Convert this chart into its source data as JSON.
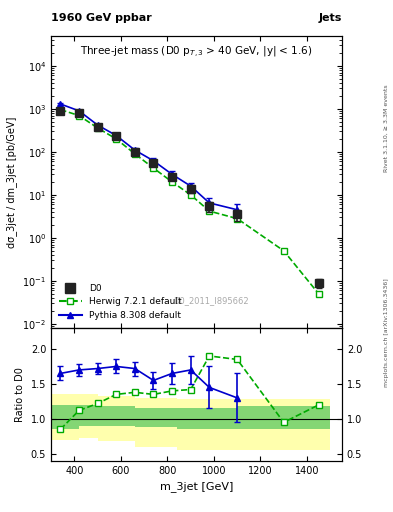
{
  "title_top": "1960 GeV ppbar",
  "title_top_right": "Jets",
  "plot_title": "Three-jet mass (D0 p_{T,3} > 40 GeV, |y| < 1.6)",
  "xlabel": "m_3jet [GeV]",
  "ylabel_main": "dσ_3jet / dm_3jet [pb/GeV]",
  "ylabel_ratio": "Ratio to D0",
  "watermark": "D0_2011_I895662",
  "right_label": "mcplots.cern.ch [arXiv:1306.3436]",
  "rivet_label": "Rivet 3.1.10, ≥ 3.3M events",
  "d0_x": [
    340,
    420,
    500,
    580,
    660,
    740,
    820,
    900,
    980,
    1100,
    1450
  ],
  "d0_y": [
    900,
    800,
    380,
    230,
    100,
    55,
    26,
    14,
    5.5,
    3.5,
    0.09
  ],
  "d0_yerr": [
    60,
    50,
    30,
    20,
    12,
    8,
    4,
    3,
    1.5,
    1.0,
    0.02
  ],
  "herwig_x": [
    340,
    420,
    500,
    580,
    660,
    740,
    820,
    900,
    980,
    1100,
    1300,
    1450
  ],
  "herwig_y": [
    960,
    700,
    360,
    200,
    90,
    42,
    20,
    10,
    4.2,
    2.8,
    0.5,
    0.05
  ],
  "pythia_x": [
    340,
    420,
    500,
    580,
    660,
    740,
    820,
    900,
    980,
    1100
  ],
  "pythia_y": [
    1300,
    900,
    420,
    240,
    110,
    62,
    30,
    16,
    6.5,
    4.5
  ],
  "pythia_yerr": [
    80,
    60,
    35,
    25,
    14,
    9,
    5,
    3,
    2.0,
    1.5
  ],
  "ratio_herwig_x": [
    340,
    420,
    500,
    580,
    660,
    740,
    820,
    900,
    980,
    1100,
    1300,
    1450
  ],
  "ratio_herwig_y": [
    0.85,
    1.12,
    1.22,
    1.35,
    1.38,
    1.35,
    1.4,
    1.42,
    1.9,
    1.85,
    0.95,
    1.2
  ],
  "ratio_pythia_x": [
    340,
    420,
    500,
    580,
    660,
    740,
    820,
    900,
    980,
    1100
  ],
  "ratio_pythia_y": [
    1.65,
    1.7,
    1.72,
    1.75,
    1.72,
    1.55,
    1.65,
    1.7,
    1.45,
    1.3
  ],
  "ratio_pythia_yerr": [
    0.1,
    0.08,
    0.08,
    0.1,
    0.1,
    0.12,
    0.15,
    0.2,
    0.3,
    0.35
  ],
  "band_x_edges": [
    300,
    420,
    500,
    660,
    840,
    1100,
    1500
  ],
  "band_green_lo": [
    0.85,
    0.9,
    0.9,
    0.88,
    0.85,
    0.85,
    0.85
  ],
  "band_green_hi": [
    1.2,
    1.2,
    1.18,
    1.15,
    1.15,
    1.18,
    1.18
  ],
  "band_yellow_lo": [
    0.7,
    0.72,
    0.68,
    0.6,
    0.55,
    0.55,
    0.55
  ],
  "band_yellow_hi": [
    1.35,
    1.35,
    1.32,
    1.3,
    1.28,
    1.28,
    1.28
  ],
  "xlim": [
    300,
    1550
  ],
  "ylim_main": [
    0.008,
    50000
  ],
  "ylim_ratio": [
    0.4,
    2.3
  ],
  "color_d0": "#222222",
  "color_herwig": "#00aa00",
  "color_pythia": "#0000cc",
  "color_band_green": "#66cc66",
  "color_band_yellow": "#ffff99"
}
